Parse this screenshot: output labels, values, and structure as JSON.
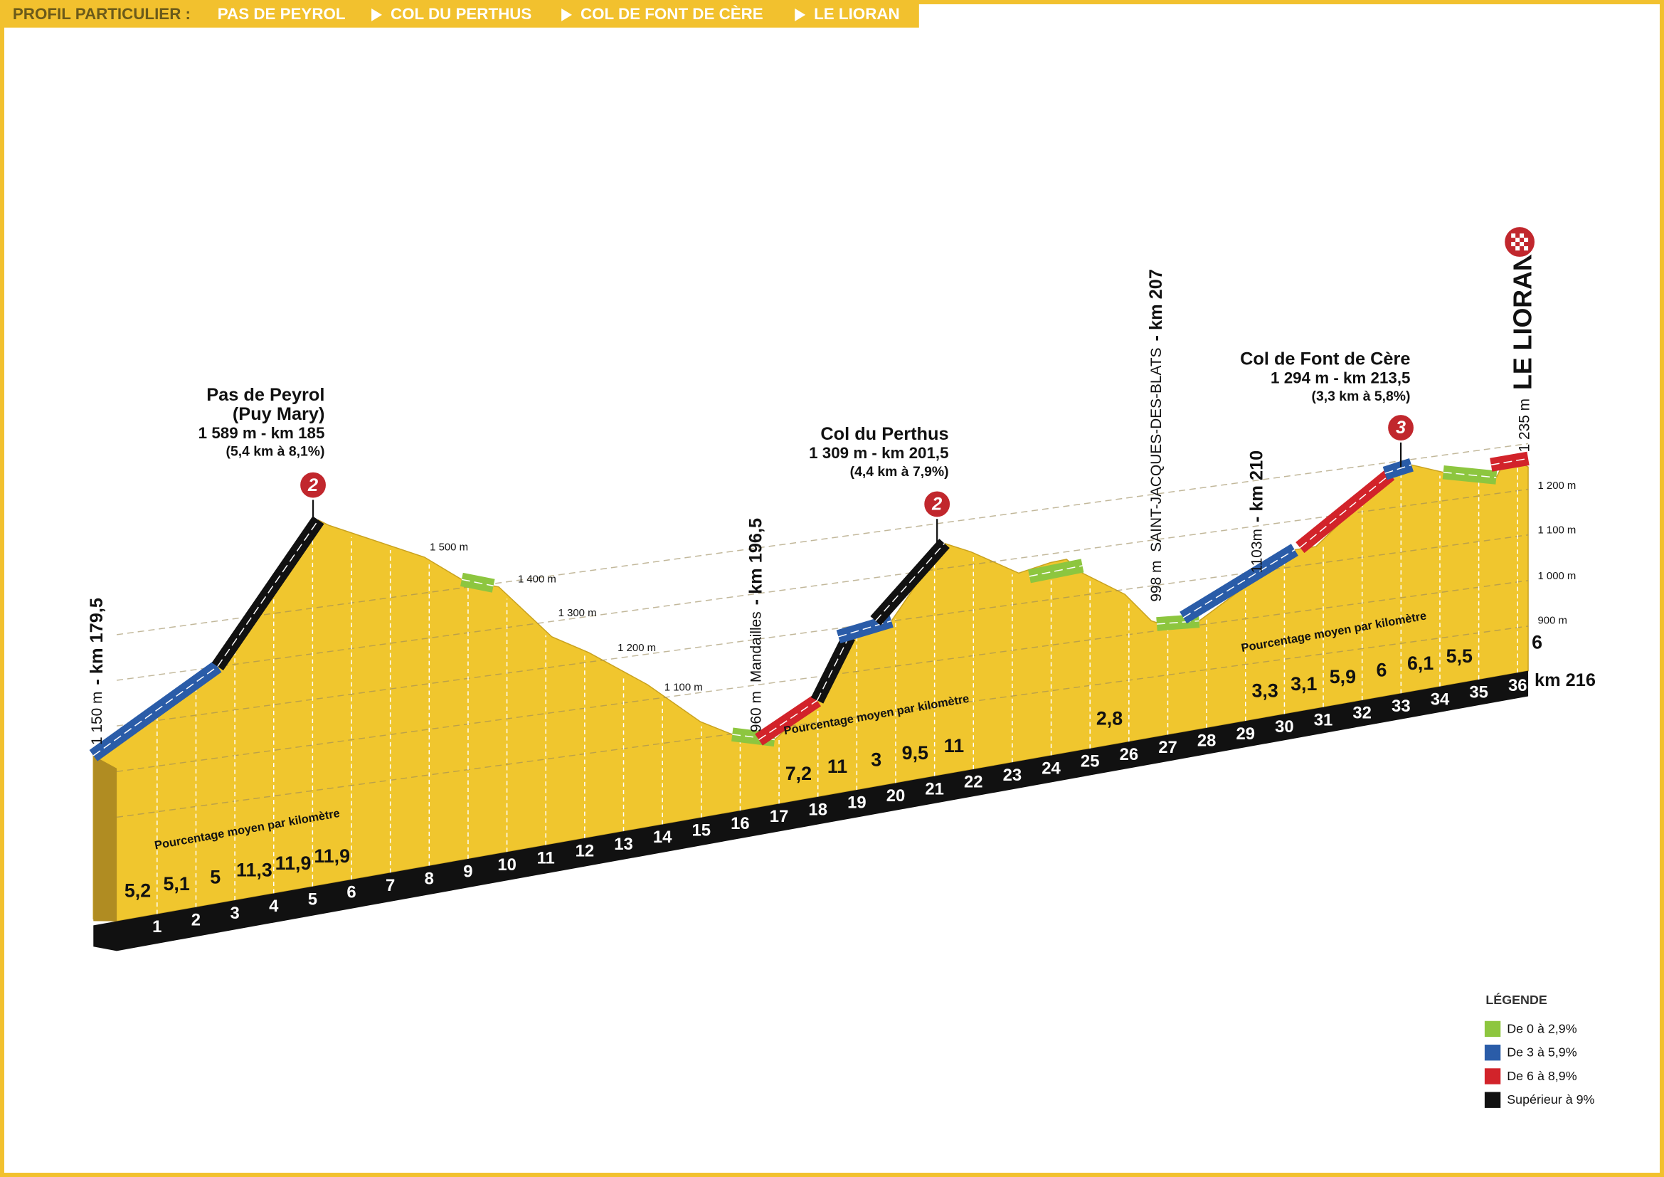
{
  "header": {
    "label": "PROFIL PARTICULIER :",
    "route": [
      "PAS DE PEYROL",
      "COL DU PERTHUS",
      "COL DE FONT DE CÈRE",
      "LE LIORAN"
    ]
  },
  "climbs": [
    {
      "name": "Pas de Peyrol",
      "alt_name": "(Puy Mary)",
      "summit": "1 589 m - km 185",
      "gradient": "(5,4 km à 8,1%)",
      "category": 2
    },
    {
      "name": "Col du Perthus",
      "summit": "1 309 m - km 201,5",
      "gradient": "(4,4 km à 7,9%)",
      "category": 2
    },
    {
      "name": "Col de Font de Cère",
      "summit": "1 294 m - km 213,5",
      "gradient": "(3,3 km à 5,8%)",
      "category": 3
    }
  ],
  "waypoints": [
    {
      "elevation": "1 150 m",
      "km": "- km 179,5"
    },
    {
      "elevation": "960 m",
      "place": "Mandailles",
      "km": "- km 196,5"
    },
    {
      "elevation": "998 m",
      "place": "SAINT-JACQUES-DES-BLATS",
      "km": "- km 207"
    },
    {
      "elevation": "1103m",
      "km": "- km 210"
    }
  ],
  "finish": {
    "elevation": "1 235 m",
    "name": "LE LIORAN",
    "km": "km 216"
  },
  "altitude_labels": [
    "1 500 m",
    "1 400 m",
    "1 300 m",
    "1 200 m",
    "1 100 m"
  ],
  "altitude_scale": [
    "1 200 m",
    "1 100 m",
    "1 000 m",
    "900 m"
  ],
  "gradient_caption": "Pourcentage moyen par kilomètre",
  "km_markers": [
    1,
    2,
    3,
    4,
    5,
    6,
    7,
    8,
    9,
    10,
    11,
    12,
    13,
    14,
    15,
    16,
    17,
    18,
    19,
    20,
    21,
    22,
    23,
    24,
    25,
    26,
    27,
    28,
    29,
    30,
    31,
    32,
    33,
    34,
    35,
    36
  ],
  "km_gradients": [
    "5,2",
    "5,1",
    "5",
    "11,3",
    "11,9",
    "11,9",
    null,
    null,
    null,
    null,
    null,
    null,
    null,
    null,
    null,
    null,
    null,
    "7,2",
    "11",
    "3",
    "9,5",
    "11",
    null,
    null,
    null,
    "2,8",
    null,
    null,
    null,
    "3,3",
    "3,1",
    "5,9",
    "6",
    "6,1",
    "5,5",
    null,
    "6"
  ],
  "legend": {
    "title": "LÉGENDE",
    "items": [
      {
        "label": "De 0 à 2,9%",
        "color": "#8dc63f"
      },
      {
        "label": "De 3 à 5,9%",
        "color": "#2a5ca8"
      },
      {
        "label": "De 6 à 8,9%",
        "color": "#d2232a"
      },
      {
        "label": "Supérieur à 9%",
        "color": "#111111"
      }
    ]
  }
}
